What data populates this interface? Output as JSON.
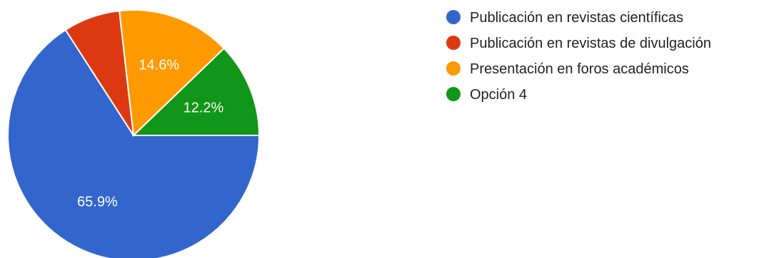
{
  "chart_data": {
    "type": "pie",
    "categories": [
      "Publicación en revistas científicas",
      "Publicación en revistas de divulgación",
      "Presentación en foros académicos",
      "Opción 4"
    ],
    "values": [
      65.9,
      7.3,
      14.6,
      12.2
    ],
    "labels": [
      "65.9%",
      "",
      "14.6%",
      "12.2%"
    ],
    "colors": [
      "#3366cc",
      "#dc3912",
      "#ff9900",
      "#109618"
    ],
    "legend_position": "right"
  }
}
